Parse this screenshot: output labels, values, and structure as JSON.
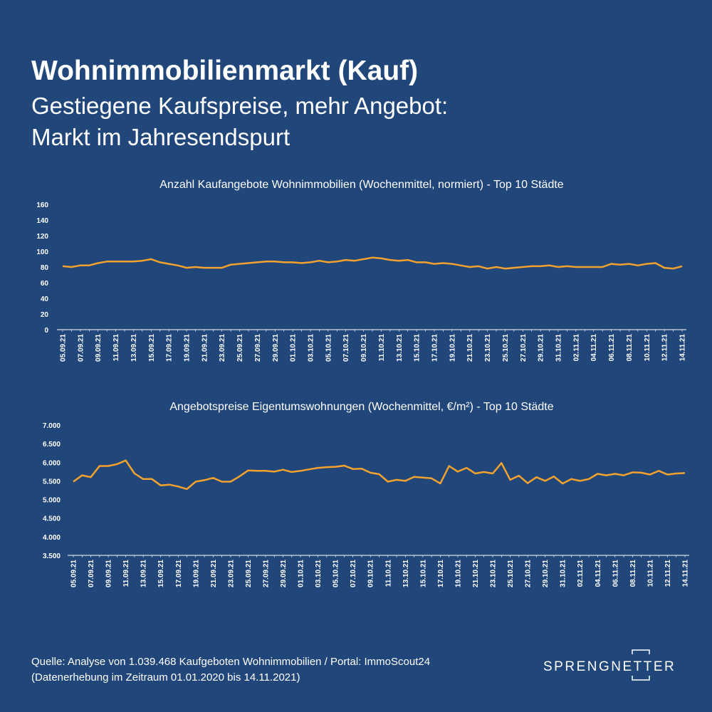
{
  "header": {
    "title": "Wohnimmobilienmarkt (Kauf)",
    "subtitle": [
      "Gestiegene Kaufspreise, mehr Angebot:",
      "Markt im Jahresendspurt"
    ]
  },
  "chart_data": [
    {
      "type": "line",
      "title": "Anzahl Kaufangebote Wohnimmobilien (Wochenmittel, normiert) - Top 10 Städte",
      "color": "#f4a22d",
      "categories": [
        "05.09.21",
        null,
        "07.09.21",
        null,
        "09.09.21",
        null,
        "11.09.21",
        null,
        "13.09.21",
        null,
        "15.09.21",
        null,
        "17.09.21",
        null,
        "19.09.21",
        null,
        "21.09.21",
        null,
        "23.09.21",
        null,
        "25.09.21",
        null,
        "27.09.21",
        null,
        "29.09.21",
        null,
        "01.10.21",
        null,
        "03.10.21",
        null,
        "05.10.21",
        null,
        "07.10.21",
        null,
        "09.10.21",
        null,
        "11.10.21",
        null,
        "13.10.21",
        null,
        "15.10.21",
        null,
        "17.10.21",
        null,
        "19.10.21",
        null,
        "21.10.21",
        null,
        "23.10.21",
        null,
        "25.10.21",
        null,
        "27.10.21",
        null,
        "29.10.21",
        null,
        "31.10.21",
        null,
        "02.11.21",
        null,
        "04.11.21",
        null,
        "06.11.21",
        null,
        "08.11.21",
        null,
        "10.11.21",
        null,
        "12.11.21",
        null,
        "14.11.21"
      ],
      "values": [
        81,
        80,
        82,
        82,
        85,
        87,
        87,
        87,
        87,
        88,
        90,
        86,
        84,
        82,
        79,
        80,
        79,
        79,
        79,
        83,
        84,
        85,
        86,
        87,
        87,
        86,
        86,
        85,
        86,
        88,
        86,
        87,
        89,
        88,
        90,
        92,
        91,
        89,
        88,
        89,
        86,
        86,
        84,
        85,
        84,
        82,
        80,
        81,
        78,
        80,
        78,
        79,
        80,
        81,
        81,
        82,
        80,
        81,
        80,
        80,
        80,
        80,
        84,
        83,
        84,
        82,
        84,
        85,
        79,
        78,
        81
      ],
      "ylim": [
        0,
        160
      ],
      "yticks": [
        0,
        20,
        40,
        60,
        80,
        100,
        120,
        140,
        160
      ]
    },
    {
      "type": "line",
      "title": "Angebotspreise Eigentumswohnungen (Wochenmittel, €/m²) - Top 10 Städte",
      "color": "#f4a22d",
      "categories": [
        "05.09.21",
        null,
        "07.09.21",
        null,
        "09.09.21",
        null,
        "11.09.21",
        null,
        "13.09.21",
        null,
        "15.09.21",
        null,
        "17.09.21",
        null,
        "19.09.21",
        null,
        "21.09.21",
        null,
        "23.09.21",
        null,
        "25.09.21",
        null,
        "27.09.21",
        null,
        "29.09.21",
        null,
        "01.10.21",
        null,
        "03.10.21",
        null,
        "05.10.21",
        null,
        "07.10.21",
        null,
        "09.10.21",
        null,
        "11.10.21",
        null,
        "13.10.21",
        null,
        "15.10.21",
        null,
        "17.10.21",
        null,
        "19.10.21",
        null,
        "21.10.21",
        null,
        "23.10.21",
        null,
        "25.10.21",
        null,
        "27.10.21",
        null,
        "29.10.21",
        null,
        "31.10.21",
        null,
        "02.11.21",
        null,
        "04.11.21",
        null,
        "06.11.21",
        null,
        "08.11.21",
        null,
        "10.11.21",
        null,
        "12.11.21",
        null,
        "14.11.21"
      ],
      "values": [
        5480,
        5650,
        5600,
        5900,
        5900,
        5950,
        6050,
        5700,
        5550,
        5550,
        5380,
        5400,
        5350,
        5280,
        5480,
        5520,
        5580,
        5480,
        5480,
        5620,
        5780,
        5770,
        5770,
        5750,
        5800,
        5740,
        5770,
        5810,
        5850,
        5870,
        5880,
        5910,
        5820,
        5830,
        5720,
        5680,
        5480,
        5530,
        5500,
        5610,
        5590,
        5570,
        5430,
        5900,
        5750,
        5850,
        5700,
        5740,
        5700,
        5980,
        5530,
        5640,
        5440,
        5600,
        5500,
        5620,
        5430,
        5550,
        5500,
        5550,
        5690,
        5650,
        5690,
        5650,
        5730,
        5720,
        5670,
        5770,
        5670,
        5700,
        5710
      ],
      "ylim": [
        3500,
        7000
      ],
      "yticks": [
        {
          "value": 3500,
          "label": "3.500"
        },
        {
          "value": 4000,
          "label": "4.000"
        },
        {
          "value": 4500,
          "label": "4.500"
        },
        {
          "value": 5000,
          "label": "5.000"
        },
        {
          "value": 5500,
          "label": "5.500"
        },
        {
          "value": 6000,
          "label": "6.000"
        },
        {
          "value": 6500,
          "label": "6.500"
        },
        {
          "value": 7000,
          "label": "7.000"
        }
      ]
    }
  ],
  "footer": {
    "source": [
      "Quelle: Analyse von 1.039.468 Kaufgeboten Wohnimmobilien / Portal: ImmoScout24",
      "(Datenerhebung im Zeitraum  01.01.2020 bis  14.11.2021)"
    ],
    "logo": "SPRENGNETTER"
  }
}
